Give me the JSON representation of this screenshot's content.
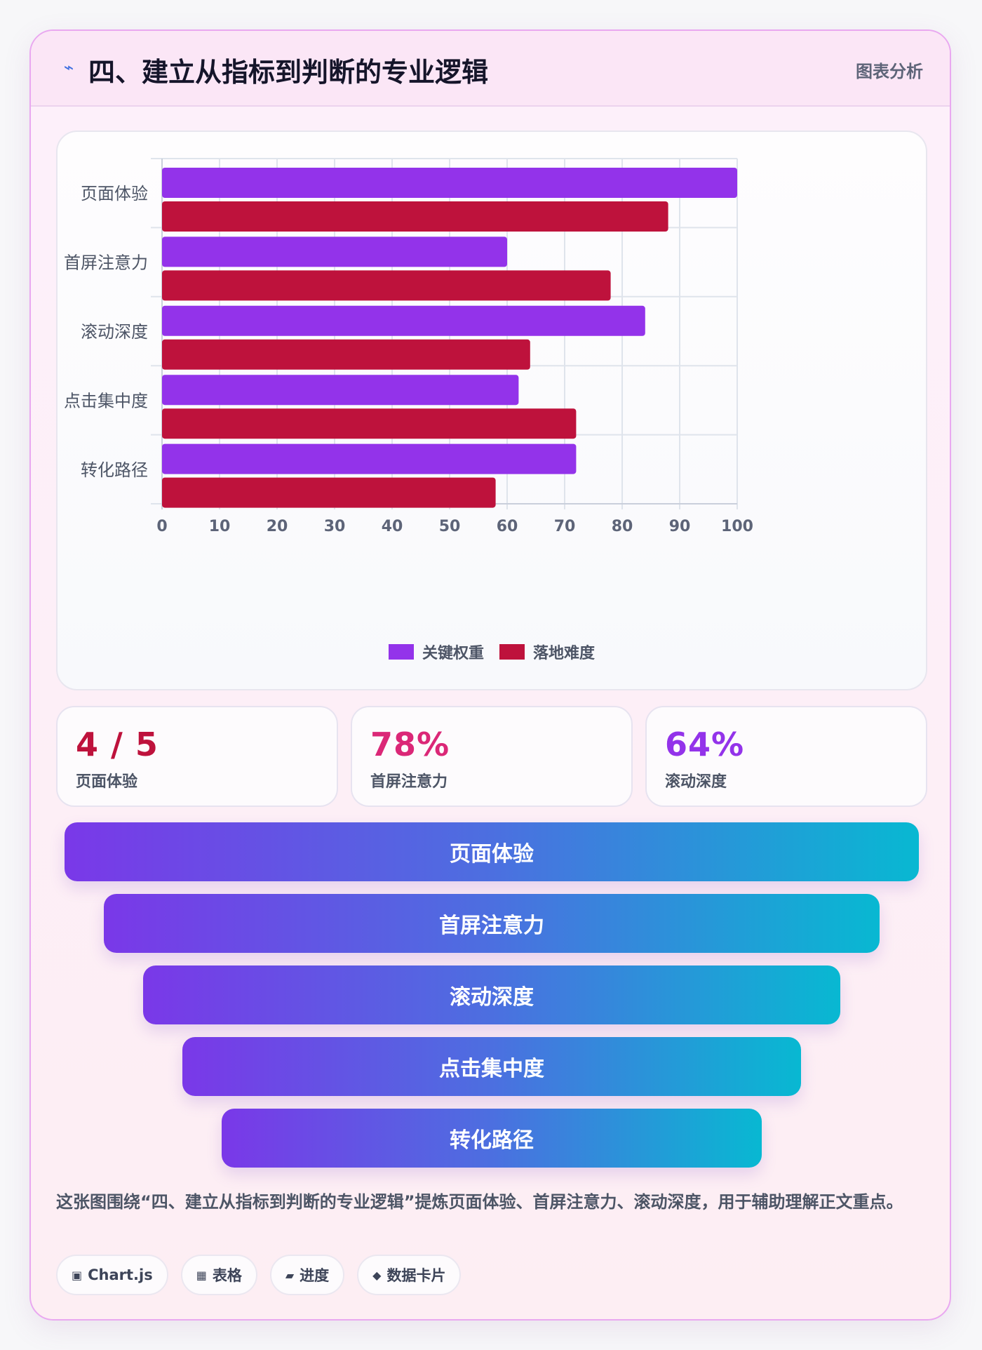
{
  "header": {
    "icon": "lightning-icon",
    "title": "四、建立从指标到判断的专业逻辑",
    "tag": "图表分析"
  },
  "chart_data": {
    "type": "bar",
    "orientation": "horizontal",
    "categories": [
      "页面体验",
      "首屏注意力",
      "滚动深度",
      "点击集中度",
      "转化路径"
    ],
    "series": [
      {
        "name": "关键权重",
        "color": "#9333ea",
        "values": [
          100,
          60,
          84,
          62,
          72
        ]
      },
      {
        "name": "落地难度",
        "color": "#be123c",
        "values": [
          88,
          78,
          64,
          72,
          58
        ]
      }
    ],
    "xlim": [
      0,
      100
    ],
    "xticks": [
      0,
      10,
      20,
      30,
      40,
      50,
      60,
      70,
      80,
      90,
      100
    ],
    "grid": true,
    "legend_position": "bottom"
  },
  "stats": [
    {
      "value": "4 / 5",
      "label": "页面体验",
      "color": "#be123c"
    },
    {
      "value": "78%",
      "label": "首屏注意力",
      "color": "#db2777"
    },
    {
      "value": "64%",
      "label": "滚动深度",
      "color": "#9333ea"
    }
  ],
  "funnel": [
    "页面体验",
    "首屏注意力",
    "滚动深度",
    "点击集中度",
    "转化路径"
  ],
  "description": "这张图围绕“四、建立从指标到判断的专业逻辑”提炼页面体验、首屏注意力、滚动深度，用于辅助理解正文重点。",
  "tags": [
    {
      "icon": "▣",
      "label": "Chart.js"
    },
    {
      "icon": "▦",
      "label": "表格"
    },
    {
      "icon": "▰",
      "label": "进度"
    },
    {
      "icon": "◆",
      "label": "数据卡片"
    }
  ]
}
